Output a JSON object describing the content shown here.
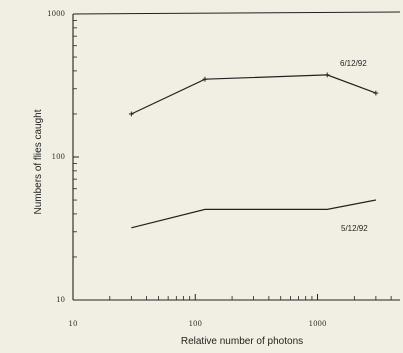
{
  "chart_data": {
    "type": "line",
    "xlabel": "Relative number of photons",
    "ylabel": "Numbers of flies caught",
    "x_scale": "log",
    "y_scale": "log",
    "xlim": [
      10,
      5000
    ],
    "ylim": [
      10,
      1000
    ],
    "x_ticks": [
      "10",
      "100",
      "1000"
    ],
    "y_ticks": [
      "10",
      "100",
      "1000"
    ],
    "grid": false,
    "series": [
      {
        "name": "6/12/92",
        "x": [
          30,
          120,
          1200,
          3000
        ],
        "y": [
          200,
          350,
          375,
          280
        ]
      },
      {
        "name": "5/12/92",
        "x": [
          30,
          120,
          1200,
          3000
        ],
        "y": [
          32,
          43,
          43,
          50
        ]
      }
    ]
  }
}
